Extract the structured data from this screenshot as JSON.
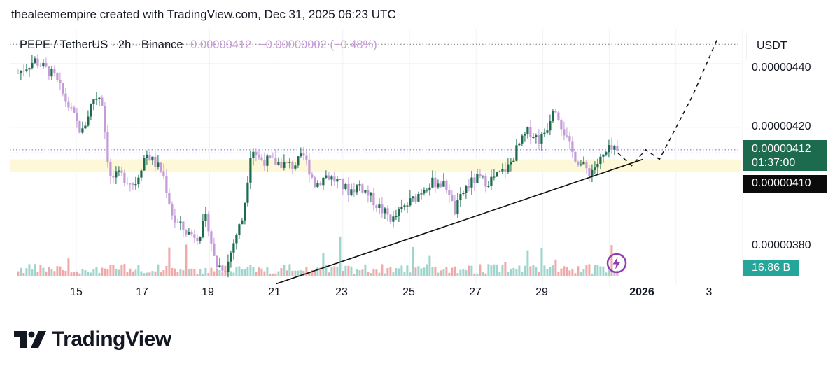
{
  "header": {
    "attribution": "thealeemempire created with TradingView.com, Dec 31, 2025 06:23 UTC"
  },
  "symbol": {
    "title": "PEPE / TetherUS · 2h · Binance",
    "last": "0.00000412",
    "change": "−0.00000002 (−0.48%)"
  },
  "currency": "USDT",
  "price_labels": {
    "p440": "0.00000440",
    "p420": "0.00000420",
    "p380": "0.00000380",
    "last_price": "0.00000412",
    "countdown": "01:37:00",
    "line_price": "0.00000410",
    "volume": "16.86 B"
  },
  "x_ticks": [
    "15",
    "17",
    "19",
    "21",
    "23",
    "25",
    "27",
    "29",
    "2026",
    "3"
  ],
  "brand": {
    "name": "TradingView"
  },
  "colors": {
    "up": "#1b6b4c",
    "down": "#c49ad9",
    "vol_up": "#9fd5cd",
    "vol_down": "#f0a8a8",
    "support_zone": "#fdf8d8",
    "last_price_tag": "#1d6b4f",
    "volume_tag": "#26a69a"
  },
  "chart_data": {
    "type": "candlestick",
    "symbol": "PEPE / TetherUS",
    "interval": "2h",
    "exchange": "Binance",
    "y_unit": "USDT",
    "ylim": [
      3.7e-06,
      4.5e-06
    ],
    "y_ticks": [
      3.8e-06,
      4.2e-06,
      4.4e-06
    ],
    "x_start": "2025-12-13",
    "x_ticks": [
      "15",
      "17",
      "19",
      "21",
      "23",
      "25",
      "27",
      "29",
      "2026",
      "3"
    ],
    "close_path": [
      [
        "2025-12-13T06:00",
        4.37e-06
      ],
      [
        "2025-12-13T18:00",
        4.41e-06
      ],
      [
        "2025-12-14T08:00",
        4.36e-06
      ],
      [
        "2025-12-14T18:00",
        4.27e-06
      ],
      [
        "2025-12-15T04:00",
        4.18e-06
      ],
      [
        "2025-12-15T12:00",
        4.29e-06
      ],
      [
        "2025-12-15T18:00",
        4.3e-06
      ],
      [
        "2025-12-16T00:00",
        4.04e-06
      ],
      [
        "2025-12-16T08:00",
        4.05e-06
      ],
      [
        "2025-12-16T18:00",
        4.02e-06
      ],
      [
        "2025-12-17T02:00",
        4.12e-06
      ],
      [
        "2025-12-17T08:00",
        4.09e-06
      ],
      [
        "2025-12-17T14:00",
        4.06e-06
      ],
      [
        "2025-12-17T22:00",
        3.91e-06
      ],
      [
        "2025-12-18T08:00",
        3.87e-06
      ],
      [
        "2025-12-18T16:00",
        3.86e-06
      ],
      [
        "2025-12-18T22:00",
        3.92e-06
      ],
      [
        "2025-12-19T04:00",
        3.77e-06
      ],
      [
        "2025-12-19T12:00",
        3.76e-06
      ],
      [
        "2025-12-19T18:00",
        3.85e-06
      ],
      [
        "2025-12-20T00:00",
        3.92e-06
      ],
      [
        "2025-12-20T06:00",
        4.14e-06
      ],
      [
        "2025-12-20T12:00",
        4.1e-06
      ],
      [
        "2025-12-21T00:00",
        4.09e-06
      ],
      [
        "2025-12-21T12:00",
        4.08e-06
      ],
      [
        "2025-12-21T20:00",
        4.11e-06
      ],
      [
        "2025-12-22T04:00",
        4.02e-06
      ],
      [
        "2025-12-22T12:00",
        4.05e-06
      ],
      [
        "2025-12-22T20:00",
        4.03e-06
      ],
      [
        "2025-12-23T04:00",
        4e-06
      ],
      [
        "2025-12-23T12:00",
        4.02e-06
      ],
      [
        "2025-12-23T20:00",
        3.98e-06
      ],
      [
        "2025-12-24T04:00",
        3.94e-06
      ],
      [
        "2025-12-24T12:00",
        3.91e-06
      ],
      [
        "2025-12-24T20:00",
        3.95e-06
      ],
      [
        "2025-12-25T04:00",
        3.98e-06
      ],
      [
        "2025-12-25T12:00",
        4.02e-06
      ],
      [
        "2025-12-25T20:00",
        4.03e-06
      ],
      [
        "2025-12-26T04:00",
        4.01e-06
      ],
      [
        "2025-12-26T08:00",
        3.93e-06
      ],
      [
        "2025-12-26T16:00",
        4.01e-06
      ],
      [
        "2025-12-27T00:00",
        4.04e-06
      ],
      [
        "2025-12-27T08:00",
        4.03e-06
      ],
      [
        "2025-12-27T16:00",
        4.05e-06
      ],
      [
        "2025-12-28T00:00",
        4.08e-06
      ],
      [
        "2025-12-28T06:00",
        4.14e-06
      ],
      [
        "2025-12-28T14:00",
        4.19e-06
      ],
      [
        "2025-12-28T22:00",
        4.16e-06
      ],
      [
        "2025-12-29T04:00",
        4.21e-06
      ],
      [
        "2025-12-29T08:00",
        4.28e-06
      ],
      [
        "2025-12-29T14:00",
        4.2e-06
      ],
      [
        "2025-12-29T20:00",
        4.13e-06
      ],
      [
        "2025-12-30T02:00",
        4.09e-06
      ],
      [
        "2025-12-30T10:00",
        4.06e-06
      ],
      [
        "2025-12-30T18:00",
        4.1e-06
      ],
      [
        "2025-12-31T00:00",
        4.13e-06
      ],
      [
        "2025-12-31T06:00",
        4.12e-06
      ]
    ],
    "annotations": {
      "trendline": [
        [
          "2025-12-21T00:00",
          3.71e-06
        ],
        [
          "2026-01-01T00:00",
          4.1e-06
        ]
      ],
      "horizontal_dotted": [
        4.46e-06,
        4.13e-06,
        4.12e-06
      ],
      "support_zone": [
        4.06e-06,
        4.1e-06
      ],
      "projection_dashed": [
        [
          "2025-12-31T06:00",
          4.12e-06
        ],
        [
          "2025-12-31T16:00",
          4.08e-06
        ],
        [
          "2026-01-01T02:00",
          4.13e-06
        ],
        [
          "2026-01-01T12:00",
          4.1e-06
        ],
        [
          "2026-01-02T12:00",
          4.3e-06
        ],
        [
          "2026-01-03T06:00",
          4.48e-06
        ]
      ]
    },
    "volume_last": "16.86 B"
  }
}
